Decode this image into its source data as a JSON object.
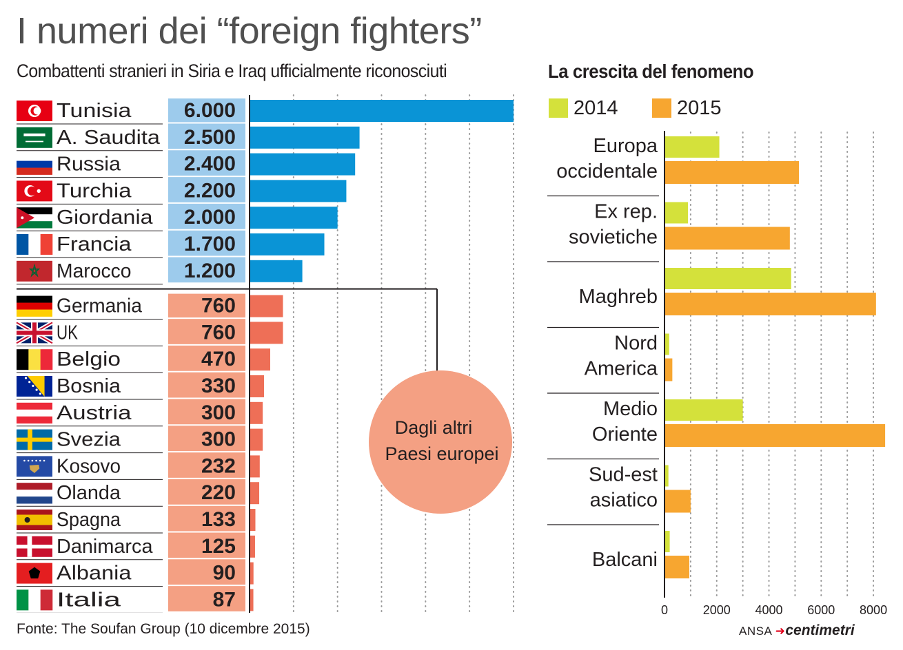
{
  "title": "I numeri dei “foreign fighters”",
  "subtitle": "Combattenti stranieri in Siria e Iraq ufficialmente riconosciuti",
  "right_title": "La crescita del fenomeno",
  "source": "Fonte: The Soufan Group (10 dicembre 2015)",
  "credit": {
    "prefix": "ANSA",
    "brand": "centimetri"
  },
  "colors": {
    "blue_bar": "#0a94d6",
    "blue_value_bg": "#9dcbec",
    "salmon_bar": "#ee6f57",
    "salmon_value_bg": "#f4a083",
    "circle": "#f4a083",
    "y2014": "#d4e13b",
    "y2015": "#f7a630"
  },
  "chart_data": [
    {
      "type": "bar",
      "orientation": "horizontal",
      "title": "Combattenti stranieri in Siria e Iraq ufficialmente riconosciuti",
      "xlim": [
        0,
        6000
      ],
      "groups": [
        {
          "name": "main",
          "items": [
            {
              "country": "Tunisia",
              "label": "6.000",
              "value": 6000,
              "flag": "flag-tunisia-icon"
            },
            {
              "country": "A. Saudita",
              "label": "2.500",
              "value": 2500,
              "flag": "flag-saudi-arabia-icon"
            },
            {
              "country": "Russia",
              "label": "2.400",
              "value": 2400,
              "flag": "flag-russia-icon"
            },
            {
              "country": "Turchia",
              "label": "2.200",
              "value": 2200,
              "flag": "flag-turkey-icon"
            },
            {
              "country": "Giordania",
              "label": "2.000",
              "value": 2000,
              "flag": "flag-jordan-icon"
            },
            {
              "country": "Francia",
              "label": "1.700",
              "value": 1700,
              "flag": "flag-france-icon"
            },
            {
              "country": "Marocco",
              "label": "1.200",
              "value": 1200,
              "flag": "flag-morocco-icon"
            }
          ]
        },
        {
          "name": "Dagli altri Paesi europei",
          "annotation": [
            "Dagli altri",
            "Paesi europei"
          ],
          "items": [
            {
              "country": "Germania",
              "label": "760",
              "value": 760,
              "flag": "flag-germany-icon"
            },
            {
              "country": "UK",
              "label": "760",
              "value": 760,
              "flag": "flag-uk-icon"
            },
            {
              "country": "Belgio",
              "label": "470",
              "value": 470,
              "flag": "flag-belgium-icon"
            },
            {
              "country": "Bosnia",
              "label": "330",
              "value": 330,
              "flag": "flag-bosnia-icon"
            },
            {
              "country": "Austria",
              "label": "300",
              "value": 300,
              "flag": "flag-austria-icon"
            },
            {
              "country": "Svezia",
              "label": "300",
              "value": 300,
              "flag": "flag-sweden-icon"
            },
            {
              "country": "Kosovo",
              "label": "232",
              "value": 232,
              "flag": "flag-kosovo-icon"
            },
            {
              "country": "Olanda",
              "label": "220",
              "value": 220,
              "flag": "flag-netherlands-icon"
            },
            {
              "country": "Spagna",
              "label": "133",
              "value": 133,
              "flag": "flag-spain-icon"
            },
            {
              "country": "Danimarca",
              "label": "125",
              "value": 125,
              "flag": "flag-denmark-icon"
            },
            {
              "country": "Albania",
              "label": "90",
              "value": 90,
              "flag": "flag-albania-icon"
            },
            {
              "country": "Italia",
              "label": "87",
              "value": 87,
              "flag": "flag-italy-icon"
            }
          ]
        }
      ]
    },
    {
      "type": "bar",
      "orientation": "horizontal",
      "title": "La crescita del fenomeno",
      "legend": [
        "2014",
        "2015"
      ],
      "xlim": [
        0,
        8500
      ],
      "xticks": [
        0,
        2000,
        4000,
        6000,
        8000
      ],
      "categories": [
        [
          "Europa",
          "occidentale"
        ],
        [
          "Ex rep.",
          "sovietiche"
        ],
        [
          "Maghreb"
        ],
        [
          "Nord",
          "America"
        ],
        [
          "Medio",
          "Oriente"
        ],
        [
          "Sud-est",
          "asiatico"
        ],
        [
          "Balcani"
        ]
      ],
      "series": [
        {
          "name": "2014",
          "values": [
            2100,
            900,
            4850,
            180,
            3000,
            150,
            200
          ]
        },
        {
          "name": "2015",
          "values": [
            5150,
            4800,
            8100,
            300,
            8450,
            1000,
            950
          ]
        }
      ]
    }
  ]
}
